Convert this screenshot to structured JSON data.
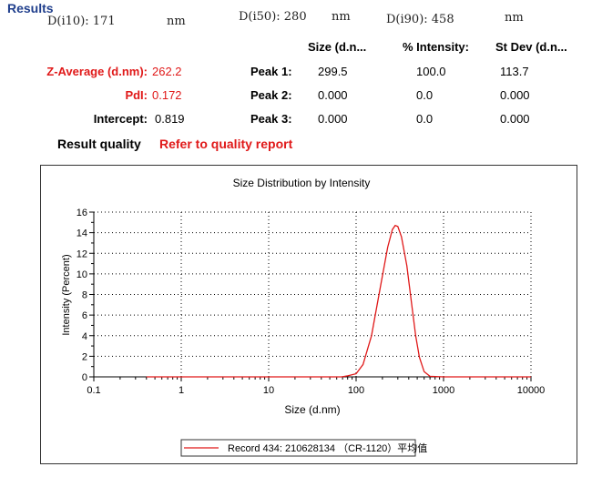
{
  "header": {
    "title": "Results",
    "d10": "D(i10): 171",
    "d10_unit": "nm",
    "d50": "D(i50): 280",
    "d50_unit": "nm",
    "d90": "D(i90): 458",
    "d90_unit": "nm"
  },
  "table": {
    "col_size": "Size (d.n...",
    "col_intensity": "% Intensity:",
    "col_stdev": "St Dev (d.n...",
    "left_labels": [
      "Z-Average (d.nm):",
      "PdI:",
      "Intercept:"
    ],
    "left_values": [
      "262.2",
      "0.172",
      "0.819"
    ],
    "peaks": [
      {
        "label": "Peak 1:",
        "size": "299.5",
        "intensity": "100.0",
        "stdev": "113.7"
      },
      {
        "label": "Peak 2:",
        "size": "0.000",
        "intensity": "0.0",
        "stdev": "0.000"
      },
      {
        "label": "Peak 3:",
        "size": "0.000",
        "intensity": "0.0",
        "stdev": "0.000"
      }
    ],
    "quality_label": "Result quality",
    "quality_value": "Refer to quality report"
  },
  "colors": {
    "accent_red": "#e01919",
    "header_blue": "#1f3e8c"
  },
  "chart_data": {
    "type": "line",
    "title": "Size Distribution by Intensity",
    "xlabel": "Size (d.nm)",
    "ylabel": "Intensity (Percent)",
    "x_scale": "log",
    "xlim": [
      0.1,
      10000
    ],
    "ylim": [
      0,
      16
    ],
    "x_ticks": [
      "0.1",
      "1",
      "10",
      "100",
      "1000",
      "10000"
    ],
    "y_ticks": [
      "0",
      "2",
      "4",
      "6",
      "8",
      "10",
      "12",
      "14",
      "16"
    ],
    "grid": true,
    "legend_position": "bottom",
    "series": [
      {
        "name": "Record 434: 210628134 （CR-1120）平均值",
        "color": "#e01919",
        "x": [
          0.4,
          1,
          10,
          50,
          68,
          80,
          100,
          120,
          150,
          190,
          230,
          260,
          280,
          300,
          330,
          380,
          430,
          480,
          530,
          600,
          700,
          1000,
          2000,
          5000,
          10000
        ],
        "y": [
          0,
          0,
          0,
          0,
          0,
          0.1,
          0.3,
          1.2,
          4.0,
          8.8,
          12.6,
          14.3,
          14.7,
          14.6,
          13.6,
          10.8,
          7.2,
          4.0,
          1.9,
          0.5,
          0.05,
          0,
          0,
          0,
          0
        ]
      }
    ]
  }
}
